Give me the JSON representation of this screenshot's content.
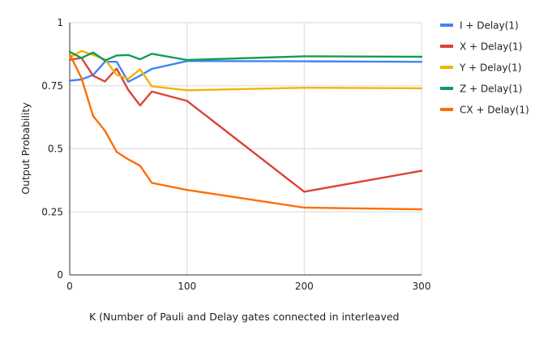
{
  "chart_data": {
    "type": "line",
    "title": "",
    "xlabel": "K (Number of Pauli and Delay gates connected in interleaved",
    "ylabel": "Output Probability",
    "xlim": [
      0,
      300
    ],
    "ylim": [
      0,
      1
    ],
    "x_ticks": [
      0,
      100,
      200,
      300
    ],
    "x_tick_labels": [
      "0",
      "100",
      "200",
      "300"
    ],
    "y_ticks": [
      0,
      0.25,
      0.5,
      0.75,
      1
    ],
    "y_tick_labels": [
      "0",
      "0.25",
      "0.5",
      "0.75",
      "1"
    ],
    "grid": true,
    "legend_position": "right",
    "series": [
      {
        "name": "I + Delay(1)",
        "color": "#4285f4",
        "x": [
          0,
          10,
          20,
          30,
          40,
          50,
          60,
          70,
          100,
          200,
          300
        ],
        "y": [
          0.77,
          0.775,
          0.793,
          0.845,
          0.845,
          0.766,
          0.79,
          0.817,
          0.848,
          0.847,
          0.845
        ]
      },
      {
        "name": "X + Delay(1)",
        "color": "#db4437",
        "x": [
          0,
          10,
          20,
          30,
          40,
          50,
          60,
          70,
          100,
          200,
          300
        ],
        "y": [
          0.853,
          0.86,
          0.79,
          0.767,
          0.818,
          0.733,
          0.672,
          0.727,
          0.69,
          0.33,
          0.413
        ]
      },
      {
        "name": "Y + Delay(1)",
        "color": "#f4b400",
        "x": [
          0,
          10,
          20,
          30,
          40,
          50,
          60,
          70,
          100,
          200,
          300
        ],
        "y": [
          0.862,
          0.888,
          0.872,
          0.855,
          0.793,
          0.778,
          0.815,
          0.748,
          0.732,
          0.742,
          0.74
        ]
      },
      {
        "name": "Z + Delay(1)",
        "color": "#0f9d58",
        "x": [
          0,
          10,
          20,
          30,
          40,
          50,
          60,
          70,
          100,
          200,
          300
        ],
        "y": [
          0.885,
          0.86,
          0.882,
          0.85,
          0.87,
          0.872,
          0.855,
          0.877,
          0.852,
          0.867,
          0.865
        ]
      },
      {
        "name": "CX + Delay(1)",
        "color": "#ff6d01",
        "x": [
          0,
          10,
          20,
          30,
          40,
          50,
          60,
          70,
          100,
          200,
          300
        ],
        "y": [
          0.875,
          0.78,
          0.63,
          0.572,
          0.488,
          0.458,
          0.433,
          0.365,
          0.337,
          0.267,
          0.26
        ]
      }
    ]
  }
}
